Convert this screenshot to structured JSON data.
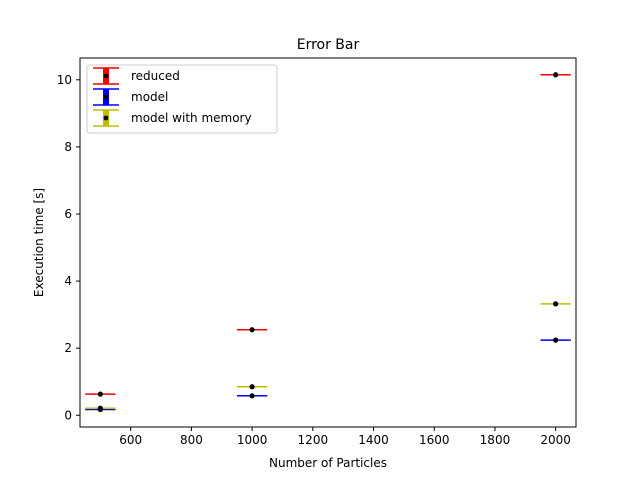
{
  "chart_data": {
    "type": "errorbar",
    "title": "Error Bar",
    "xlabel": "Number of Particles",
    "ylabel": "Execution time [s]",
    "xlim": [
      433,
      2067
    ],
    "ylim": [
      -0.35,
      10.65
    ],
    "xticks": [
      600,
      800,
      1000,
      1200,
      1400,
      1600,
      1800,
      2000
    ],
    "yticks": [
      0,
      2,
      4,
      6,
      8,
      10
    ],
    "legend_position": "upper left",
    "grid": false,
    "x": [
      500,
      1000,
      2000
    ],
    "series": [
      {
        "name": "reduced",
        "color": "#ff0000",
        "values": [
          0.63,
          2.55,
          10.15
        ],
        "xerr": 50
      },
      {
        "name": "model",
        "color": "#0000ff",
        "values": [
          0.17,
          0.58,
          2.24
        ],
        "xerr": 50
      },
      {
        "name": "model with memory",
        "color": "#bfbf00",
        "values": [
          0.21,
          0.85,
          3.32
        ],
        "xerr": 50
      }
    ]
  }
}
